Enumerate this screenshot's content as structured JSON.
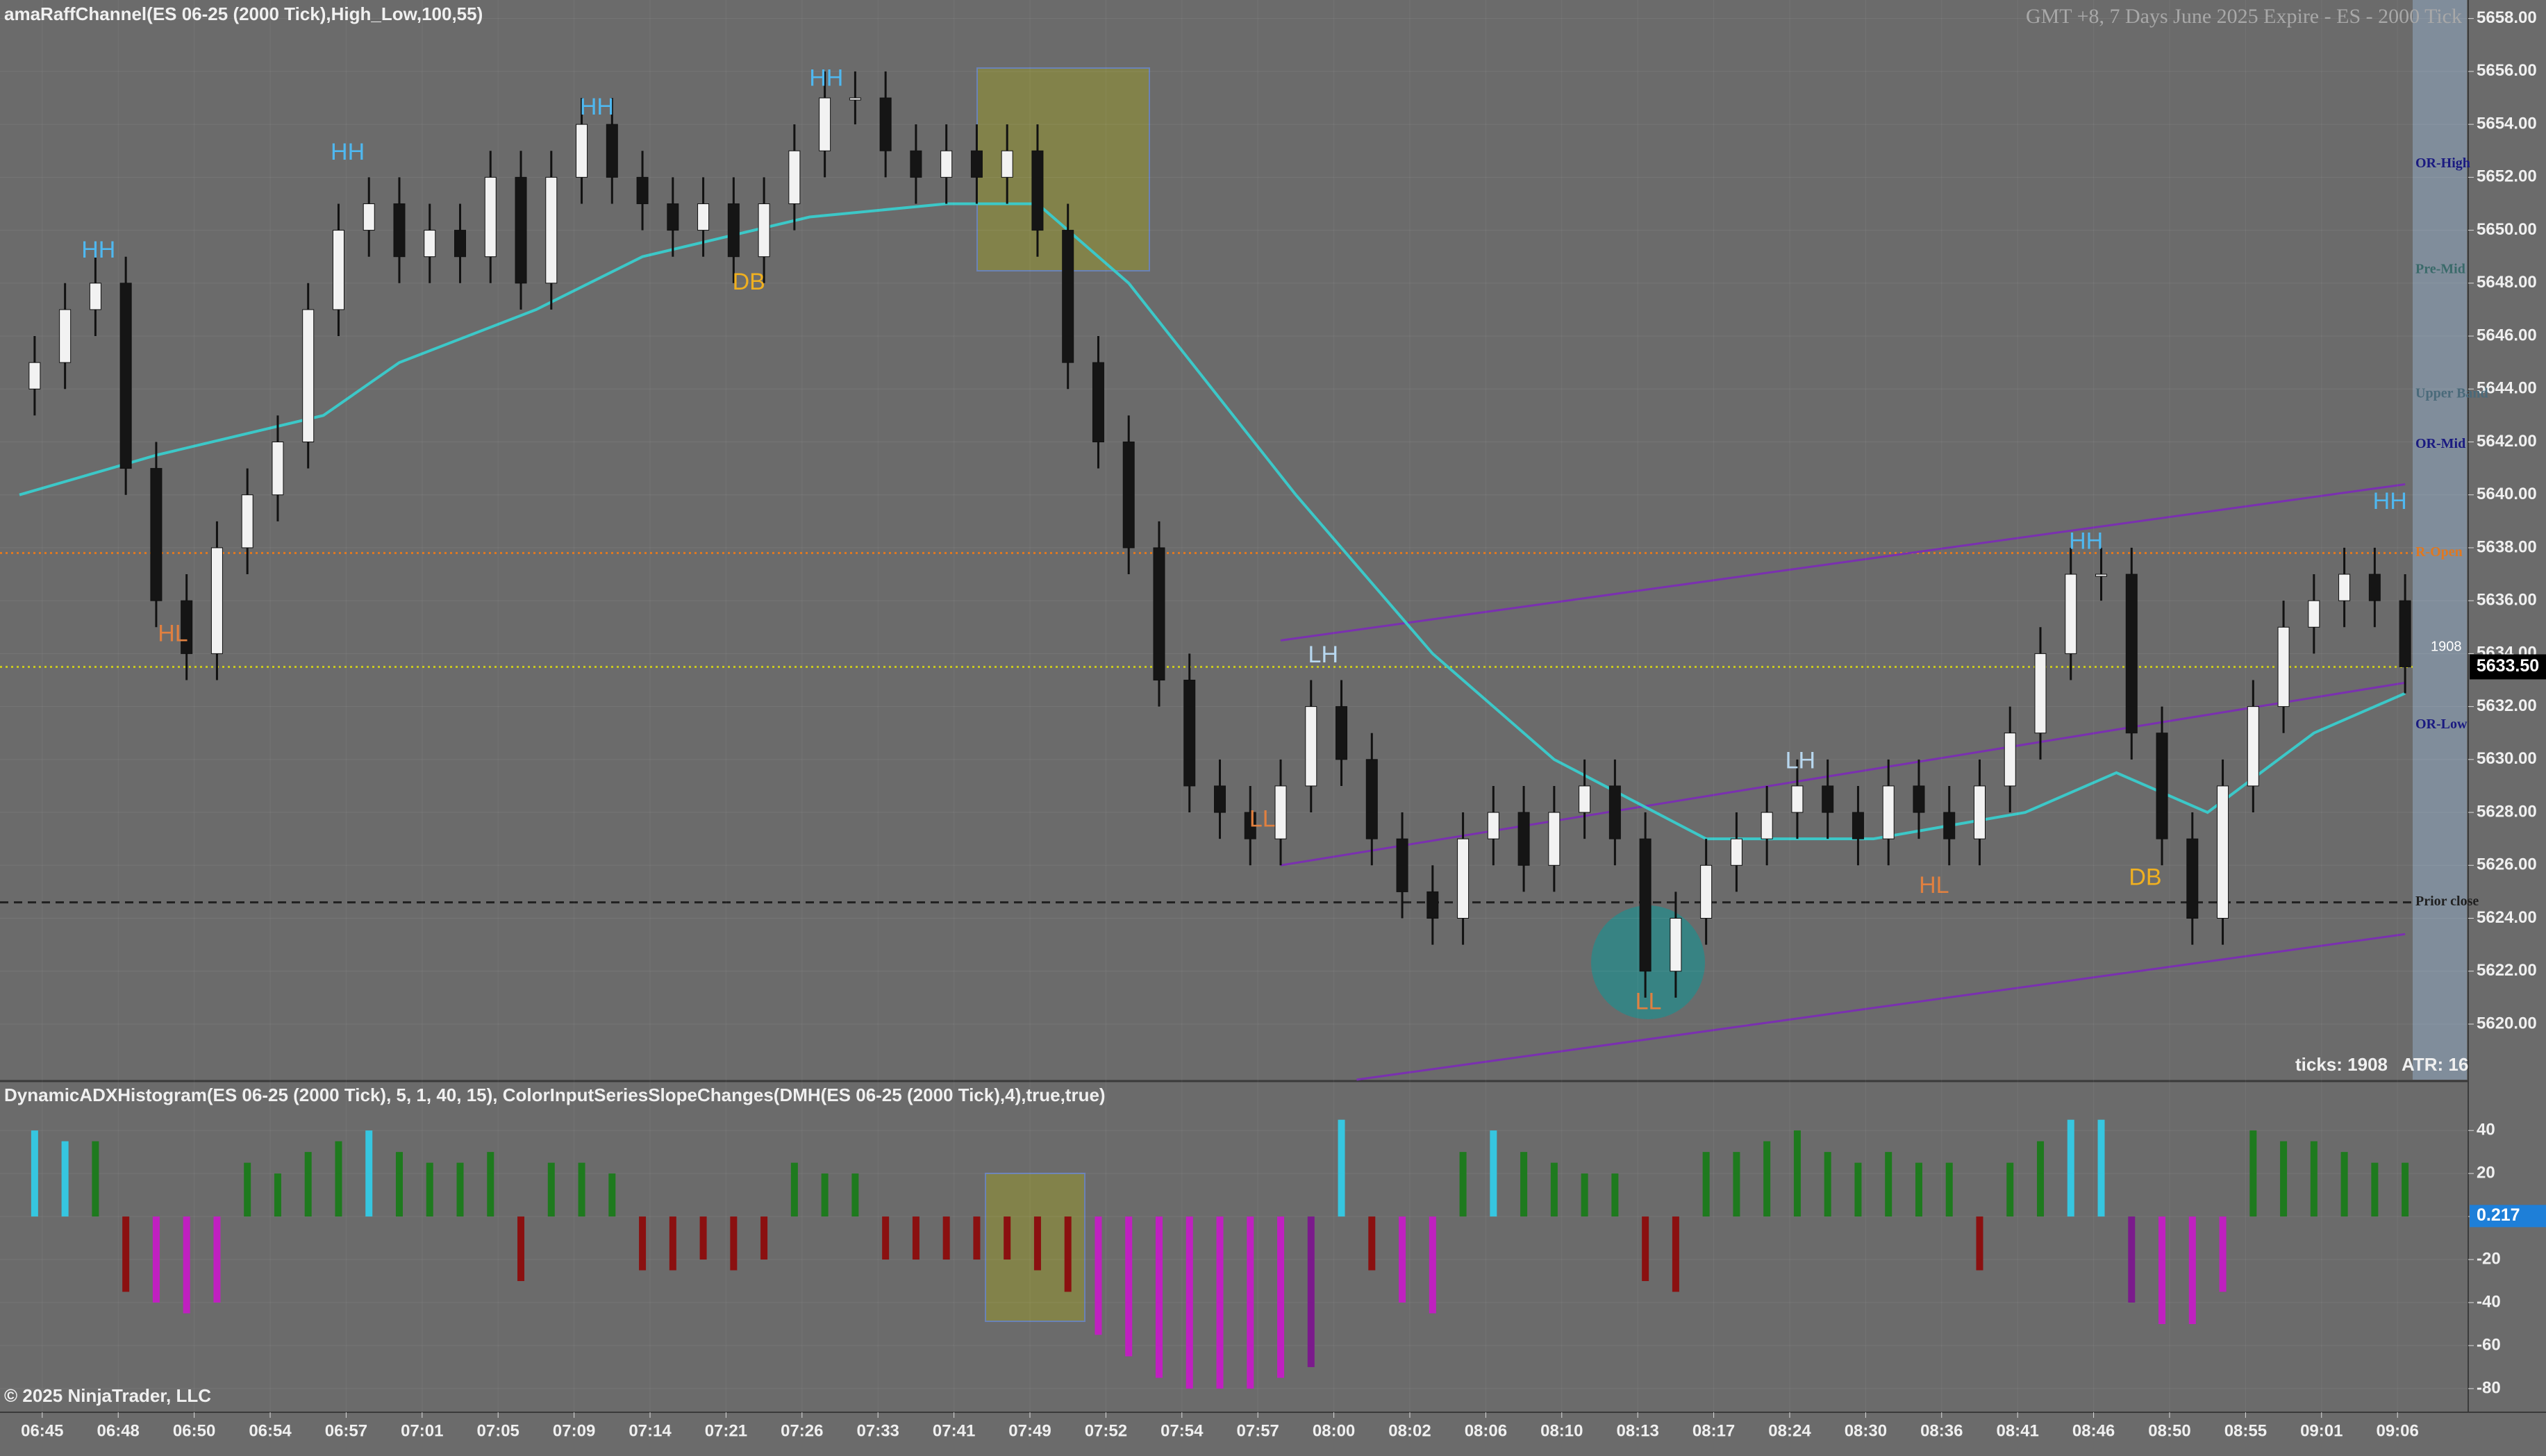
{
  "chart_data": [
    {
      "type": "candlestick",
      "title": "amaRaffChannel(ES 06-25 (2000 Tick),High_Low,100,55)",
      "subtitle": "GMT +8, 7 Days June 2025 Expire - ES - 2000 Tick",
      "tick_count_label": "ticks: 1908",
      "atr_label": "ATR: 16",
      "bar_counter": "1908",
      "up_color": "#f2f2f2",
      "down_color": "#151515",
      "x": [
        1,
        3,
        5,
        7,
        9,
        11,
        13,
        15,
        17,
        19,
        21,
        23,
        25,
        27,
        29,
        31,
        33,
        35,
        37,
        39,
        41,
        43,
        45,
        47,
        49,
        51,
        53,
        55,
        57,
        59,
        61,
        63,
        65,
        67,
        69,
        71,
        73,
        75,
        77,
        79,
        81,
        83,
        85,
        87,
        89,
        91,
        93,
        95,
        97,
        99,
        101,
        103,
        105,
        107,
        109,
        111,
        113,
        115,
        117,
        119,
        121,
        123,
        125,
        127,
        129,
        131,
        133,
        135,
        137,
        139,
        141,
        143,
        145,
        147,
        149,
        151,
        153,
        155,
        157
      ],
      "open": [
        5644,
        5645,
        5647,
        5648,
        5641,
        5636,
        5634,
        5638,
        5640,
        5642,
        5647,
        5650,
        5651,
        5649,
        5650,
        5649,
        5652,
        5648,
        5652,
        5654,
        5652,
        5651,
        5650,
        5651,
        5649,
        5651,
        5653,
        5655,
        5655,
        5653,
        5652,
        5653,
        5652,
        5653,
        5650,
        5645,
        5642,
        5638,
        5633,
        5629,
        5628,
        5627,
        5629,
        5632,
        5630,
        5627,
        5625,
        5624,
        5627,
        5628,
        5626,
        5628,
        5629,
        5627,
        5622,
        5624,
        5626,
        5627,
        5628,
        5629,
        5628,
        5627,
        5629,
        5628,
        5627,
        5629,
        5631,
        5634,
        5637,
        5637,
        5631,
        5627,
        5624,
        5629,
        5632,
        5635,
        5636,
        5637,
        5636
      ],
      "high": [
        5646,
        5648,
        5649,
        5649,
        5642,
        5637,
        5639,
        5641,
        5643,
        5648,
        5651,
        5652,
        5652,
        5651,
        5651,
        5653,
        5653,
        5653,
        5655,
        5655,
        5653,
        5652,
        5652,
        5652,
        5652,
        5654,
        5656,
        5656,
        5656,
        5654,
        5654,
        5654,
        5654,
        5654,
        5651,
        5646,
        5643,
        5639,
        5634,
        5630,
        5629,
        5630,
        5633,
        5633,
        5631,
        5628,
        5626,
        5628,
        5629,
        5629,
        5629,
        5630,
        5630,
        5628,
        5625,
        5627,
        5628,
        5629,
        5630,
        5630,
        5629,
        5630,
        5630,
        5629,
        5630,
        5632,
        5635,
        5638,
        5638,
        5638,
        5632,
        5628,
        5630,
        5633,
        5636,
        5637,
        5638,
        5638,
        5637
      ],
      "low": [
        5643,
        5644,
        5646,
        5640,
        5635,
        5633,
        5633,
        5637,
        5639,
        5641,
        5646,
        5649,
        5648,
        5648,
        5648,
        5648,
        5647,
        5647,
        5651,
        5651,
        5650,
        5649,
        5649,
        5648,
        5648,
        5650,
        5652,
        5654,
        5652,
        5651,
        5651,
        5651,
        5651,
        5649,
        5644,
        5641,
        5637,
        5632,
        5628,
        5627,
        5626,
        5626,
        5628,
        5629,
        5626,
        5624,
        5623,
        5623,
        5626,
        5625,
        5625,
        5627,
        5626,
        5621,
        5621,
        5623,
        5625,
        5626,
        5627,
        5627,
        5626,
        5626,
        5627,
        5626,
        5626,
        5628,
        5630,
        5633,
        5636,
        5630,
        5626,
        5623,
        5623,
        5628,
        5631,
        5634,
        5635,
        5635,
        5632.5
      ],
      "close": [
        5645,
        5647,
        5648,
        5641,
        5636,
        5634,
        5638,
        5640,
        5642,
        5647,
        5650,
        5651,
        5649,
        5650,
        5649,
        5652,
        5648,
        5652,
        5654,
        5652,
        5651,
        5650,
        5651,
        5649,
        5651,
        5653,
        5655,
        5655,
        5653,
        5652,
        5653,
        5652,
        5653,
        5650,
        5645,
        5642,
        5638,
        5633,
        5629,
        5628,
        5627,
        5629,
        5632,
        5630,
        5627,
        5625,
        5624,
        5627,
        5628,
        5626,
        5628,
        5629,
        5627,
        5622,
        5624,
        5626,
        5627,
        5628,
        5629,
        5628,
        5627,
        5629,
        5628,
        5627,
        5629,
        5631,
        5634,
        5637,
        5637,
        5631,
        5627,
        5624,
        5629,
        5632,
        5635,
        5636,
        5637,
        5636,
        5633.5
      ],
      "lines": [
        {
          "color": "#3cc8c8",
          "x": [
            0,
            9,
            20,
            25,
            34,
            41,
            52,
            61,
            67,
            73,
            84,
            93,
            101,
            111,
            122,
            132,
            138,
            144,
            151,
            157
          ],
          "values": [
            5640,
            5641.5,
            5643,
            5645,
            5647,
            5649,
            5650.5,
            5651,
            5651,
            5648,
            5640,
            5634,
            5630,
            5627,
            5627,
            5628,
            5629.5,
            5628,
            5631,
            5632.5
          ]
        }
      ],
      "trend_lines": [
        {
          "color": "#7a30b0",
          "x": [
            83,
            157
          ],
          "values": [
            5634.5,
            5640.4
          ]
        },
        {
          "color": "#7a30b0",
          "x": [
            83,
            157
          ],
          "values": [
            5626,
            5632.9
          ]
        },
        {
          "color": "#7a30b0",
          "x": [
            88,
            157
          ],
          "values": [
            5617.9,
            5623.4
          ]
        }
      ],
      "levels": [
        {
          "label": "OR-High",
          "value": 5652.5,
          "color": "#1a1a80"
        },
        {
          "label": "Pre-Mid",
          "value": 5648.5,
          "color": "#3a6a6a"
        },
        {
          "label": "Upper Band",
          "value": 5643.8,
          "color": "#4a6a7a"
        },
        {
          "label": "OR-Mid",
          "value": 5641.9,
          "color": "#1a1a80"
        },
        {
          "label": "R-Open",
          "value": 5637.8,
          "color": "#e07820",
          "style": "dotted"
        },
        {
          "value": 5633.5,
          "color": "#c8c820",
          "style": "dotted"
        },
        {
          "label": "OR-Low",
          "value": 5631.3,
          "color": "#1a1a80"
        },
        {
          "label": "Prior close",
          "value": 5624.6,
          "color": "#202020",
          "style": "dashed"
        }
      ],
      "annotations": [
        {
          "text": "HH",
          "x": 5.2,
          "y": 5649.2,
          "color": "#4fb8f0"
        },
        {
          "text": "HL",
          "x": 10.1,
          "y": 5634.7,
          "color": "#e08040"
        },
        {
          "text": "HH",
          "x": 21.6,
          "y": 5652.9,
          "color": "#4fb8f0"
        },
        {
          "text": "HH",
          "x": 38,
          "y": 5654.6,
          "color": "#4fb8f0"
        },
        {
          "text": "DB",
          "x": 48,
          "y": 5648,
          "color": "#f0b020"
        },
        {
          "text": "HH",
          "x": 53.1,
          "y": 5655.7,
          "color": "#4fb8f0"
        },
        {
          "text": "LL",
          "x": 81.8,
          "y": 5627.7,
          "color": "#e08040"
        },
        {
          "text": "LH",
          "x": 85.8,
          "y": 5633.9,
          "color": "#b8d8f0"
        },
        {
          "text": "LL",
          "x": 107.2,
          "y": 5620.8,
          "color": "#e08040"
        },
        {
          "text": "LH",
          "x": 117.2,
          "y": 5629.9,
          "color": "#b8d8f0"
        },
        {
          "text": "HL",
          "x": 126,
          "y": 5625.2,
          "color": "#e08040"
        },
        {
          "text": "HH",
          "x": 136,
          "y": 5638.2,
          "color": "#4fb8f0"
        },
        {
          "text": "DB",
          "x": 139.9,
          "y": 5625.5,
          "color": "#f0b020"
        },
        {
          "text": "HH",
          "x": 156,
          "y": 5639.7,
          "color": "#4fb8f0"
        }
      ],
      "current_price": {
        "value": 5633.5,
        "label": "5633.50"
      },
      "xlim": [
        0,
        158
      ],
      "ylim": [
        5617.9,
        5658.7
      ],
      "yticks": [
        {
          "value": 5620,
          "label": "5620.00"
        },
        {
          "value": 5622,
          "label": "5622.00"
        },
        {
          "value": 5624,
          "label": "5624.00"
        },
        {
          "value": 5626,
          "label": "5626.00"
        },
        {
          "value": 5628,
          "label": "5628.00"
        },
        {
          "value": 5630,
          "label": "5630.00"
        },
        {
          "value": 5632,
          "label": "5632.00"
        },
        {
          "value": 5634,
          "label": "5634.00"
        },
        {
          "value": 5636,
          "label": "5636.00"
        },
        {
          "value": 5638,
          "label": "5638.00"
        },
        {
          "value": 5640,
          "label": "5640.00"
        },
        {
          "value": 5642,
          "label": "5642.00"
        },
        {
          "value": 5644,
          "label": "5644.00"
        },
        {
          "value": 5646,
          "label": "5646.00"
        },
        {
          "value": 5648,
          "label": "5648.00"
        },
        {
          "value": 5650,
          "label": "5650.00"
        },
        {
          "value": 5652,
          "label": "5652.00"
        },
        {
          "value": 5654,
          "label": "5654.00"
        },
        {
          "value": 5656,
          "label": "5656.00"
        },
        {
          "value": 5658,
          "label": "5658.00"
        }
      ],
      "grid": true
    },
    {
      "type": "bar",
      "title": "DynamicADXHistogram(ES 06-25 (2000 Tick), 5, 1, 40, 15), ColorInputSeriesSlopeChanges(DMH(ES 06-25 (2000 Tick),4),true,true)",
      "footer": "© 2025 NinjaTrader, LLC",
      "x": [
        1,
        3,
        5,
        7,
        9,
        11,
        13,
        15,
        17,
        19,
        21,
        23,
        25,
        27,
        29,
        31,
        33,
        35,
        37,
        39,
        41,
        43,
        45,
        47,
        49,
        51,
        53,
        55,
        57,
        59,
        61,
        63,
        65,
        67,
        69,
        71,
        73,
        75,
        77,
        79,
        81,
        83,
        85,
        87,
        89,
        91,
        93,
        95,
        97,
        99,
        101,
        103,
        105,
        107,
        109,
        111,
        113,
        115,
        117,
        119,
        121,
        123,
        125,
        127,
        129,
        131,
        133,
        135,
        137,
        139,
        141,
        143,
        145,
        147,
        149,
        151,
        153,
        155,
        157
      ],
      "values": [
        40,
        35,
        35,
        -35,
        -40,
        -45,
        -40,
        25,
        20,
        30,
        35,
        40,
        30,
        25,
        25,
        30,
        -30,
        25,
        25,
        20,
        -25,
        -25,
        -20,
        -25,
        -20,
        25,
        20,
        20,
        -20,
        -20,
        -20,
        -20,
        -20,
        -25,
        -35,
        -55,
        -65,
        -75,
        -80,
        -80,
        -80,
        -75,
        -70,
        45,
        -25,
        -40,
        -45,
        30,
        40,
        30,
        25,
        20,
        20,
        -30,
        -35,
        30,
        30,
        35,
        40,
        30,
        25,
        30,
        25,
        25,
        -25,
        25,
        35,
        45,
        45,
        -40,
        -50,
        -50,
        -35,
        40,
        35,
        35,
        30,
        25,
        25
      ],
      "colors": [
        "#36c6e0",
        "#36c6e0",
        "#1e7a1e",
        "#8b1010",
        "#c020c0",
        "#c020c0",
        "#c020c0",
        "#1e7a1e",
        "#1e7a1e",
        "#1e7a1e",
        "#1e7a1e",
        "#36c6e0",
        "#1e7a1e",
        "#1e7a1e",
        "#1e7a1e",
        "#1e7a1e",
        "#8b1010",
        "#1e7a1e",
        "#1e7a1e",
        "#1e7a1e",
        "#8b1010",
        "#8b1010",
        "#8b1010",
        "#8b1010",
        "#8b1010",
        "#1e7a1e",
        "#1e7a1e",
        "#1e7a1e",
        "#8b1010",
        "#8b1010",
        "#8b1010",
        "#8b1010",
        "#8b1010",
        "#8b1010",
        "#8b1010",
        "#c020c0",
        "#c020c0",
        "#c020c0",
        "#c020c0",
        "#c020c0",
        "#c020c0",
        "#c020c0",
        "#7b1a8c",
        "#36c6e0",
        "#8b1010",
        "#c020c0",
        "#c020c0",
        "#1e7a1e",
        "#36c6e0",
        "#1e7a1e",
        "#1e7a1e",
        "#1e7a1e",
        "#1e7a1e",
        "#8b1010",
        "#8b1010",
        "#1e7a1e",
        "#1e7a1e",
        "#1e7a1e",
        "#1e7a1e",
        "#1e7a1e",
        "#1e7a1e",
        "#1e7a1e",
        "#1e7a1e",
        "#1e7a1e",
        "#8b1010",
        "#1e7a1e",
        "#1e7a1e",
        "#36c6e0",
        "#36c6e0",
        "#7b1a8c",
        "#c020c0",
        "#c020c0",
        "#c020c0",
        "#1e7a1e",
        "#1e7a1e",
        "#1e7a1e",
        "#1e7a1e",
        "#1e7a1e",
        "#1e7a1e"
      ],
      "current_value": 0.217,
      "xlim": [
        0,
        158
      ],
      "ylim": [
        -91,
        62
      ],
      "yticks": [
        -80,
        -60,
        -40,
        -20,
        0,
        20,
        40
      ],
      "xticks": [
        {
          "value": 1.5,
          "label": "06:45"
        },
        {
          "value": 6.5,
          "label": "06:48"
        },
        {
          "value": 11.5,
          "label": "06:50"
        },
        {
          "value": 16.5,
          "label": "06:54"
        },
        {
          "value": 21.5,
          "label": "06:57"
        },
        {
          "value": 26.5,
          "label": "07:01"
        },
        {
          "value": 31.5,
          "label": "07:05"
        },
        {
          "value": 36.5,
          "label": "07:09"
        },
        {
          "value": 41.5,
          "label": "07:14"
        },
        {
          "value": 46.5,
          "label": "07:21"
        },
        {
          "value": 51.5,
          "label": "07:26"
        },
        {
          "value": 56.5,
          "label": "07:33"
        },
        {
          "value": 61.5,
          "label": "07:41"
        },
        {
          "value": 66.5,
          "label": "07:49"
        },
        {
          "value": 71.5,
          "label": "07:52"
        },
        {
          "value": 76.5,
          "label": "07:54"
        },
        {
          "value": 81.5,
          "label": "07:57"
        },
        {
          "value": 86.5,
          "label": "08:00"
        },
        {
          "value": 91.5,
          "label": "08:02"
        },
        {
          "value": 96.5,
          "label": "08:06"
        },
        {
          "value": 101.5,
          "label": "08:10"
        },
        {
          "value": 106.5,
          "label": "08:13"
        },
        {
          "value": 111.5,
          "label": "08:17"
        },
        {
          "value": 116.5,
          "label": "08:24"
        },
        {
          "value": 121.5,
          "label": "08:30"
        },
        {
          "value": 126.5,
          "label": "08:36"
        },
        {
          "value": 131.5,
          "label": "08:41"
        },
        {
          "value": 136.5,
          "label": "08:46"
        },
        {
          "value": 141.5,
          "label": "08:50"
        },
        {
          "value": 146.5,
          "label": "08:55"
        },
        {
          "value": 151.5,
          "label": "09:01"
        },
        {
          "value": 156.5,
          "label": "09:06"
        }
      ],
      "grid": true
    }
  ]
}
